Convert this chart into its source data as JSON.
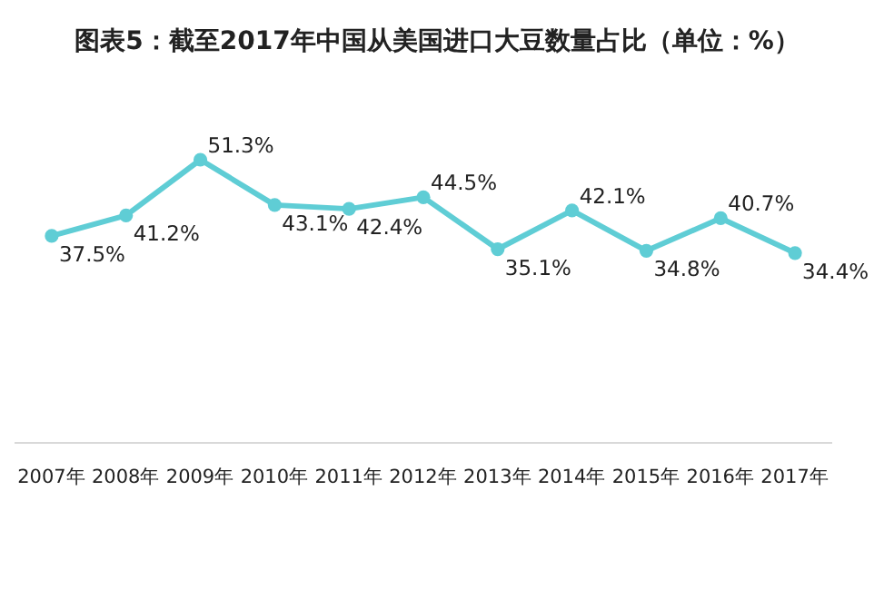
{
  "chart_data": {
    "type": "line",
    "title": "图表5：截至2017年中国从美国进口大豆数量占比（单位：%）",
    "categories": [
      "2007年",
      "2008年",
      "2009年",
      "2010年",
      "2011年",
      "2012年",
      "2013年",
      "2014年",
      "2015年",
      "2016年",
      "2017年"
    ],
    "values": [
      37.5,
      41.2,
      51.3,
      43.1,
      42.4,
      44.5,
      35.1,
      42.1,
      34.8,
      40.7,
      34.4
    ],
    "value_labels": [
      "37.5%",
      "41.2%",
      "51.3%",
      "43.1%",
      "42.4%",
      "44.5%",
      "35.1%",
      "42.1%",
      "34.8%",
      "40.7%",
      "34.4%"
    ],
    "color": "#5fcdd5",
    "marker": "circle"
  }
}
